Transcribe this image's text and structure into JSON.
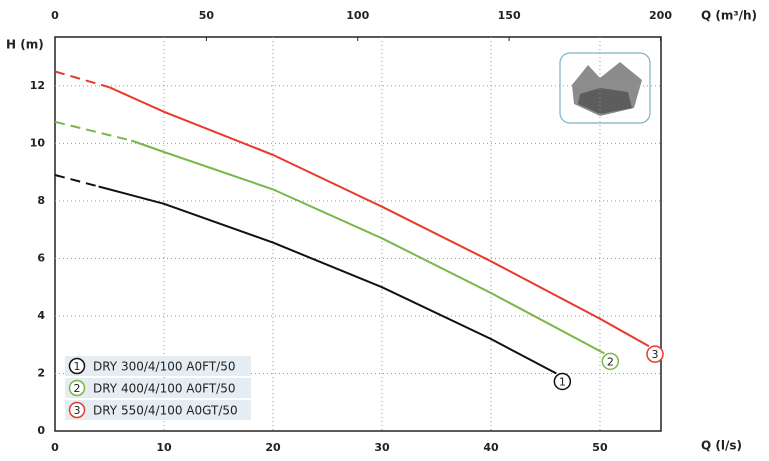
{
  "chart_data": {
    "type": "line",
    "y_label": "H (m)",
    "x_label": "Q (l/s)",
    "x2_label": "Q (m³/h)",
    "xlim": [
      0,
      55.6
    ],
    "xticks": [
      0,
      10,
      20,
      30,
      40,
      50
    ],
    "x2lim": [
      0,
      200.16
    ],
    "x2ticks": [
      0,
      50,
      100,
      150,
      200
    ],
    "ylim": [
      0,
      13.7
    ],
    "yticks": [
      0,
      2,
      4,
      6,
      8,
      10,
      12
    ],
    "grid": true,
    "legend": "lower left",
    "series": [
      {
        "name": "DRY 300/4/100 A0FT/50",
        "marker": "1",
        "color": "#111111",
        "segments": [
          {
            "style": "dashed",
            "x": [
              0,
              4
            ],
            "values": [
              8.9,
              8.5
            ]
          },
          {
            "style": "solid",
            "x": [
              4,
              10,
              20,
              30,
              40,
              46
            ],
            "values": [
              8.5,
              7.9,
              6.55,
              5.0,
              3.2,
              2.0
            ]
          }
        ]
      },
      {
        "name": "DRY 400/4/100 A0FT/50",
        "marker": "2",
        "color": "#7ab648",
        "segments": [
          {
            "style": "dashed",
            "x": [
              0,
              7
            ],
            "values": [
              10.75,
              10.1
            ]
          },
          {
            "style": "solid",
            "x": [
              7,
              10,
              20,
              30,
              40,
              50.4
            ],
            "values": [
              10.1,
              9.7,
              8.4,
              6.7,
              4.8,
              2.7
            ]
          }
        ]
      },
      {
        "name": "DRY 550/4/100 A0GT/50",
        "marker": "3",
        "color": "#e8392c",
        "segments": [
          {
            "style": "dashed",
            "x": [
              0,
              5
            ],
            "values": [
              12.5,
              11.95
            ]
          },
          {
            "style": "solid",
            "x": [
              5,
              10,
              20,
              30,
              40,
              50,
              54.5
            ],
            "values": [
              11.95,
              11.1,
              9.6,
              7.8,
              5.9,
              3.9,
              2.95
            ]
          }
        ]
      }
    ]
  }
}
